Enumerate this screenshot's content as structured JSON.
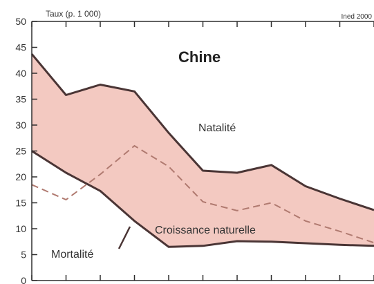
{
  "chart_data": {
    "type": "area",
    "title": "Chine",
    "ylabel": "Taux (p. 1 000)",
    "source": "Ined 2000",
    "ylim": [
      0,
      50
    ],
    "yticks": [
      "0",
      "5",
      "10",
      "15",
      "20",
      "25",
      "30",
      "35",
      "40",
      "45",
      "50"
    ],
    "x_points": 11,
    "series": [
      {
        "name": "Natalité",
        "values": [
          43.7,
          35.8,
          37.8,
          36.5,
          28.5,
          21.2,
          20.8,
          22.3,
          18.2,
          15.8,
          13.6
        ]
      },
      {
        "name": "Mortalité",
        "values": [
          25.0,
          20.8,
          17.3,
          11.5,
          6.5,
          6.7,
          7.6,
          7.5,
          7.2,
          6.9,
          6.7
        ]
      },
      {
        "name": "Croissance naturelle",
        "values": [
          18.5,
          15.6,
          20.5,
          26.0,
          22.0,
          15.2,
          13.5,
          15.0,
          11.5,
          9.5,
          7.3
        ]
      }
    ],
    "fill_between": [
      "Natalité",
      "Mortalité"
    ],
    "grid": false,
    "colors": {
      "band_fill": "#f3c9c1",
      "line": "#4a3535",
      "dashed": "#b07a70",
      "axis": "#2e2e2e",
      "text": "#333333"
    }
  }
}
